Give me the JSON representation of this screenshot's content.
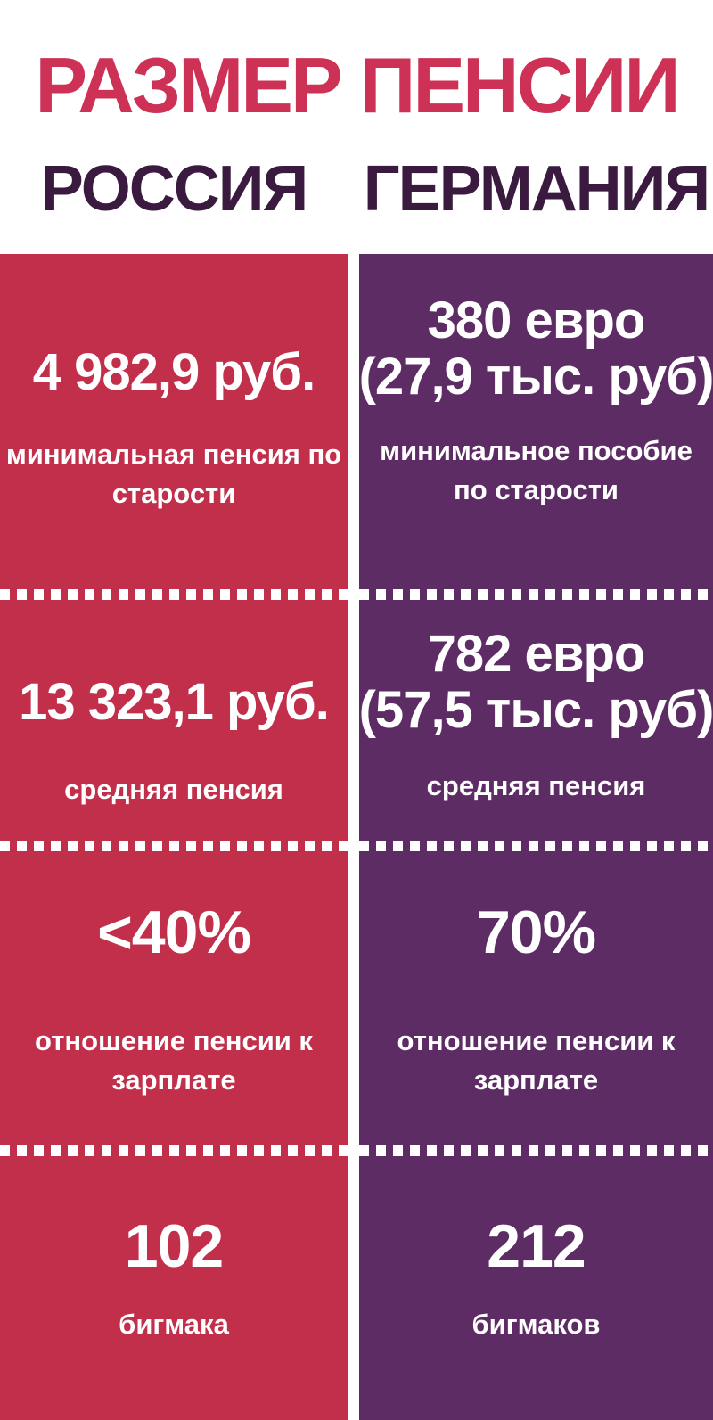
{
  "title": "РАЗМЕР ПЕНСИИ",
  "colors": {
    "title_red": "#ce3156",
    "header_text_purple": "#3a1b3f",
    "russia_column_red": "#c22f4b",
    "germany_column_purple": "#5e2c65",
    "text_white": "#ffffff"
  },
  "columns": [
    {
      "country": "РОССИЯ",
      "rows": [
        {
          "value_lines": [
            "4 982,9 руб."
          ],
          "label_lines": [
            "минимальная пенсия по",
            "старости"
          ]
        },
        {
          "value_lines": [
            "13 323,1 руб."
          ],
          "label_lines": [
            "средняя пенсия"
          ]
        },
        {
          "value_lines": [
            "<40%"
          ],
          "label_lines": [
            "отношение пенсии к",
            "зарплате"
          ]
        },
        {
          "value_lines": [
            "102"
          ],
          "label_lines": [
            "бигмака"
          ]
        }
      ]
    },
    {
      "country": "ГЕРМАНИЯ",
      "rows": [
        {
          "value_lines": [
            "380 евро",
            "(27,9 тыс. руб)"
          ],
          "label_lines": [
            "минимальное пособие",
            "по старости"
          ]
        },
        {
          "value_lines": [
            "782 евро",
            "(57,5 тыс. руб)"
          ],
          "label_lines": [
            "средняя пенсия"
          ]
        },
        {
          "value_lines": [
            "70%"
          ],
          "label_lines": [
            "отношение пенсии к",
            "зарплате"
          ]
        },
        {
          "value_lines": [
            "212"
          ],
          "label_lines": [
            "бигмаков"
          ]
        }
      ]
    }
  ],
  "chart_data": {
    "type": "table",
    "title": "РАЗМЕР ПЕНСИИ",
    "columns": [
      "РОССИЯ",
      "ГЕРМАНИЯ"
    ],
    "rows": [
      {
        "metric": "минимальная пенсия / пособие по старости",
        "russia": "4 982,9 руб.",
        "germany": "380 евро (27,9 тыс. руб)"
      },
      {
        "metric": "средняя пенсия",
        "russia": "13 323,1 руб.",
        "germany": "782 евро (57,5 тыс. руб)"
      },
      {
        "metric": "отношение пенсии к зарплате",
        "russia": "<40%",
        "germany": "70%"
      },
      {
        "metric": "эквивалент в бигмаках",
        "russia": 102,
        "germany": 212
      }
    ]
  }
}
